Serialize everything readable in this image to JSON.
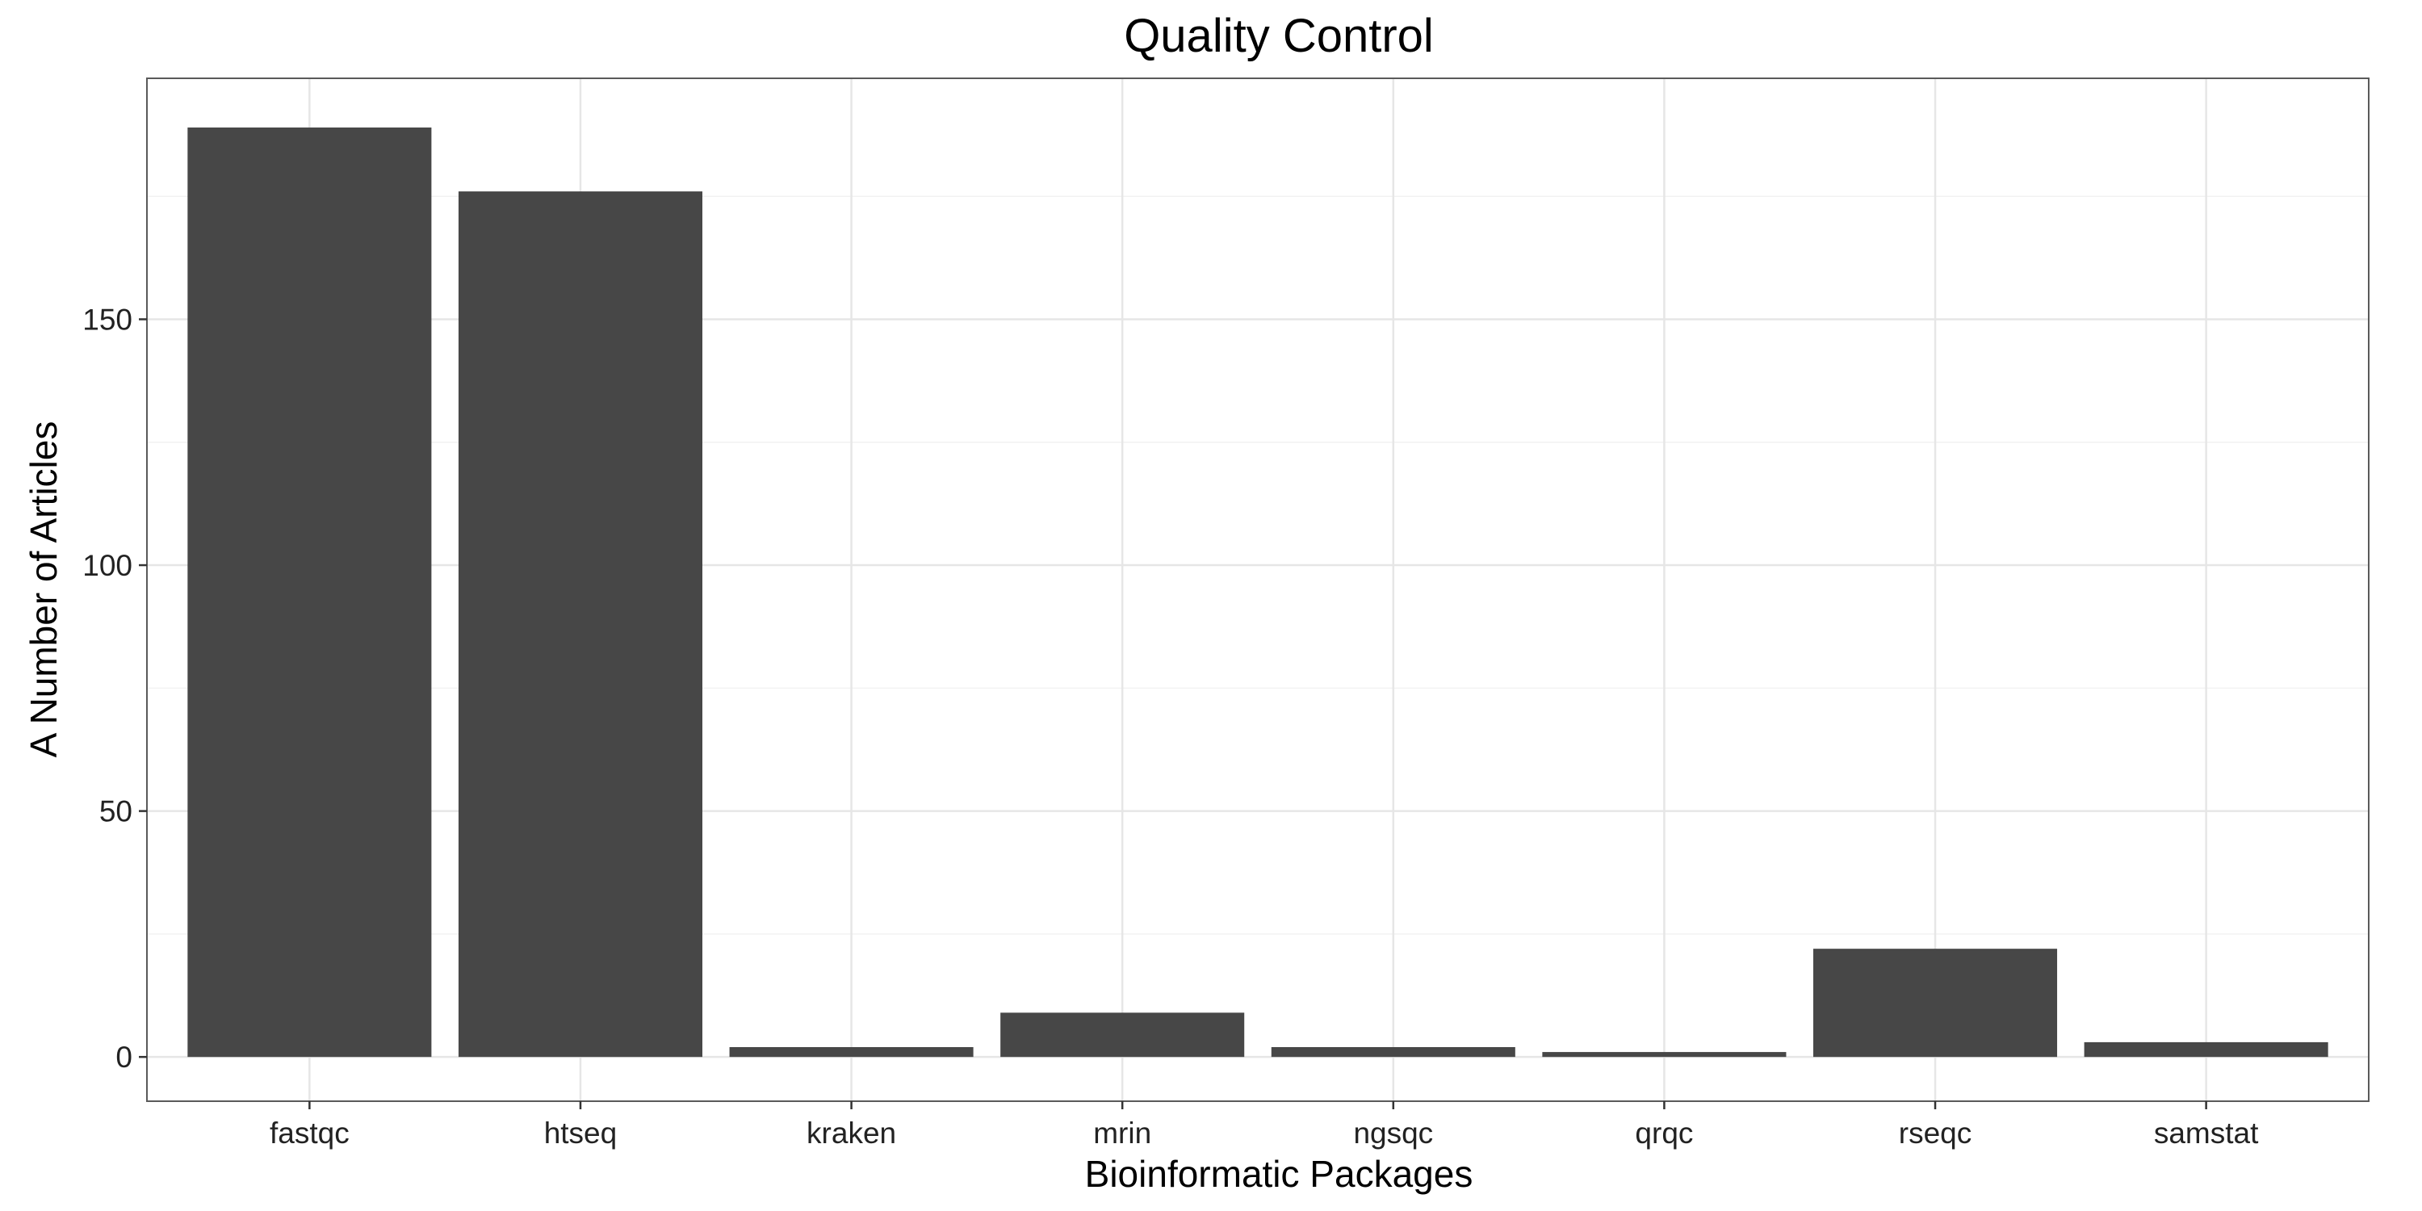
{
  "chart_data": {
    "type": "bar",
    "title": "Quality Control",
    "xlabel": "Bioinformatic Packages",
    "ylabel": "A Number of Articles",
    "categories": [
      "fastqc",
      "htseq",
      "kraken",
      "mrin",
      "ngsqc",
      "qrqc",
      "rseqc",
      "samstat"
    ],
    "values": [
      189,
      176,
      2,
      9,
      2,
      1,
      22,
      3
    ],
    "ylim": [
      -9,
      199
    ],
    "yticks": [
      0,
      50,
      100,
      150
    ],
    "grid": true,
    "legend": "none",
    "colors": {
      "bar": "#474747",
      "grid": "#e6e6e6",
      "background": "#ffffff"
    }
  }
}
